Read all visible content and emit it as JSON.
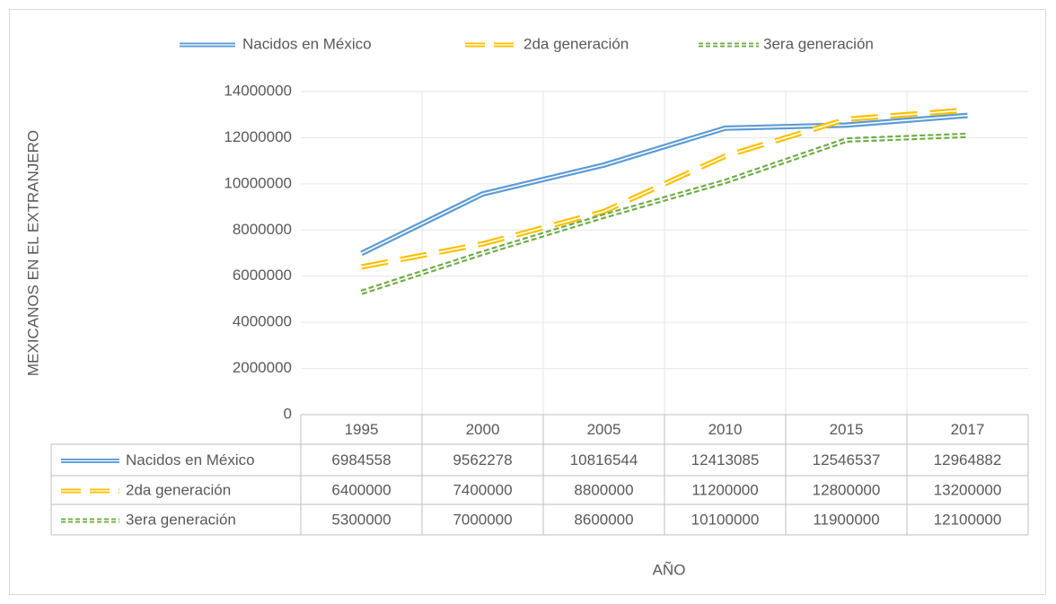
{
  "chart_data": {
    "type": "line",
    "categories": [
      "1995",
      "2000",
      "2005",
      "2010",
      "2015",
      "2017"
    ],
    "series": [
      {
        "name": "Nacidos en México",
        "color": "#5b9bd5",
        "style": "solid",
        "values": [
          6984558,
          9562278,
          10816544,
          12413085,
          12546537,
          12964882
        ]
      },
      {
        "name": "2da generación",
        "color": "#ffc000",
        "style": "dashed",
        "values": [
          6400000,
          7400000,
          8800000,
          11200000,
          12800000,
          13200000
        ]
      },
      {
        "name": "3era generación",
        "color": "#70ad47",
        "style": "dotted",
        "values": [
          5300000,
          7000000,
          8600000,
          10100000,
          11900000,
          12100000
        ]
      }
    ],
    "ylim": [
      0,
      14000000
    ],
    "yticks": [
      0,
      2000000,
      4000000,
      6000000,
      8000000,
      10000000,
      12000000,
      14000000
    ],
    "x_label": "AÑO",
    "y_label": "MEXICANOS EN EL EXTRANJERO",
    "grid": true,
    "legend": "top",
    "data_table": true
  }
}
